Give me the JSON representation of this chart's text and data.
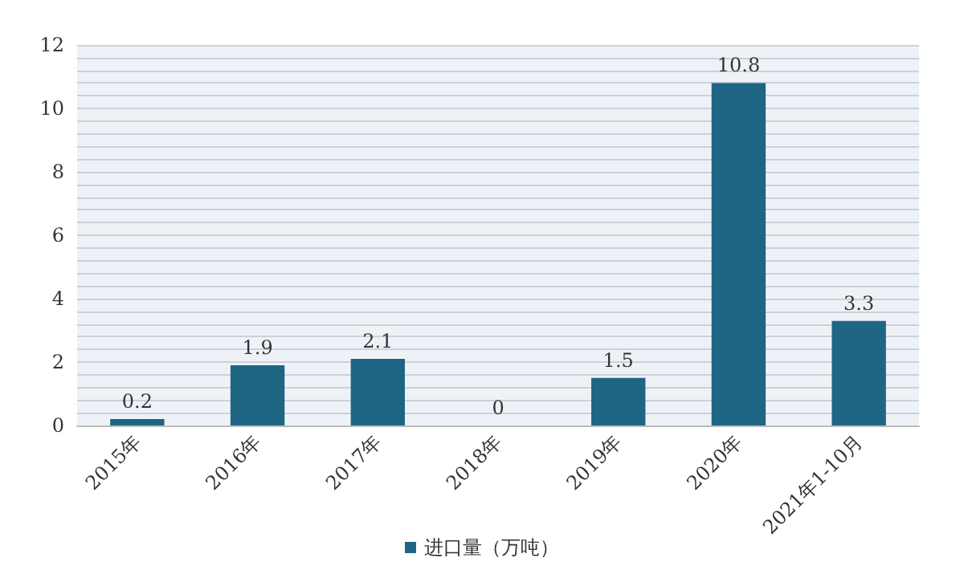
{
  "chart_data": {
    "type": "bar",
    "categories": [
      "2015年",
      "2016年",
      "2017年",
      "2018年",
      "2019年",
      "2020年",
      "2021年1-10月"
    ],
    "series": [
      {
        "name": "进口量（万吨）",
        "color": "#1f6584",
        "values": [
          0.2,
          1.9,
          2.1,
          0,
          1.5,
          10.8,
          3.3
        ]
      }
    ],
    "ylim": [
      0,
      12
    ],
    "yticks": [
      0,
      2,
      4,
      6,
      8,
      10,
      12
    ],
    "grid": true,
    "legend": "bottom",
    "data_labels": true
  }
}
